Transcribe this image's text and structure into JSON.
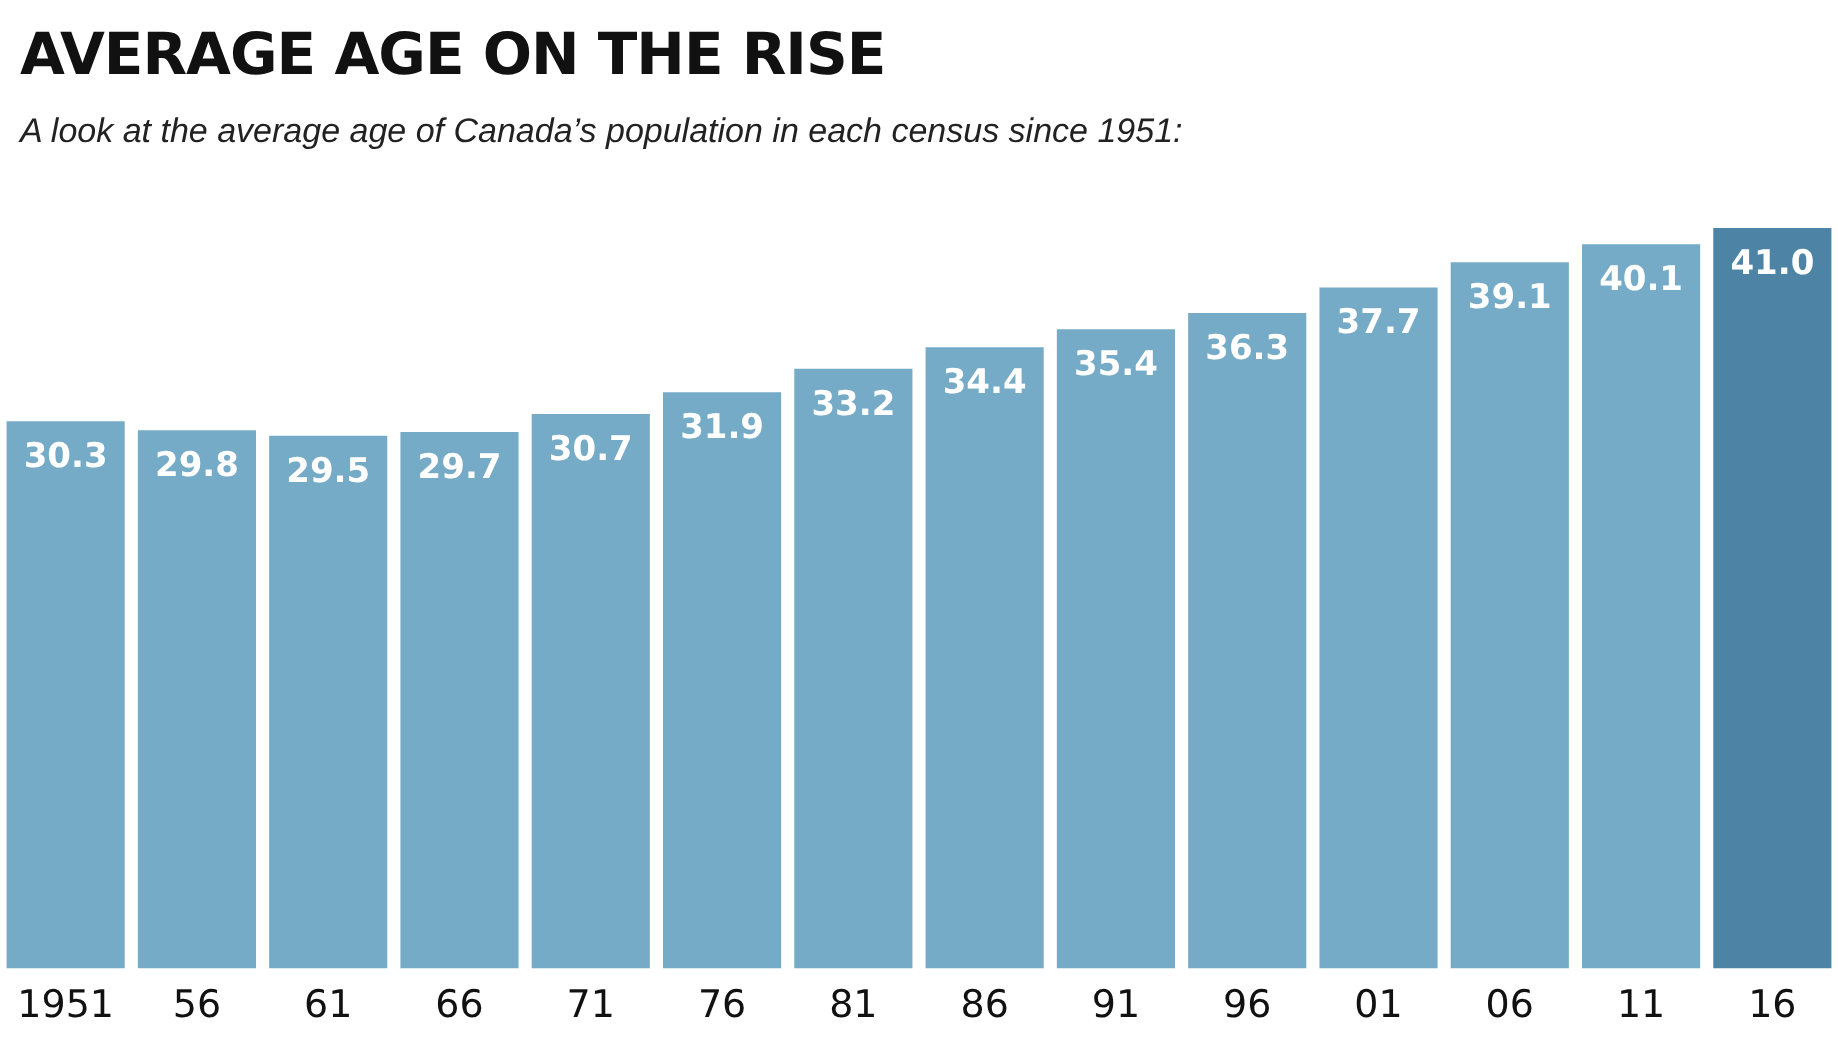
{
  "chart_data": {
    "type": "bar",
    "title": "AVERAGE AGE ON THE RISE",
    "subtitle": "A look at the average age of Canada’s population in each census since 1951:",
    "categories": [
      "1951",
      "56",
      "61",
      "66",
      "71",
      "76",
      "81",
      "86",
      "91",
      "96",
      "01",
      "06",
      "11",
      "16"
    ],
    "values": [
      30.3,
      29.8,
      29.5,
      29.7,
      30.7,
      31.9,
      33.2,
      34.4,
      35.4,
      36.3,
      37.7,
      39.1,
      40.1,
      41.0
    ],
    "value_labels": [
      "30.3",
      "29.8",
      "29.5",
      "29.7",
      "30.7",
      "31.9",
      "33.2",
      "34.4",
      "35.4",
      "36.3",
      "37.7",
      "39.1",
      "40.1",
      "41.0"
    ],
    "colors": [
      "#75abc6",
      "#75abc6",
      "#75abc6",
      "#75abc6",
      "#75abc6",
      "#75abc6",
      "#75abc6",
      "#75abc6",
      "#75abc6",
      "#75abc6",
      "#75abc6",
      "#75abc6",
      "#75abc6",
      "#4d84a5"
    ],
    "grid": false,
    "legend": false
  }
}
